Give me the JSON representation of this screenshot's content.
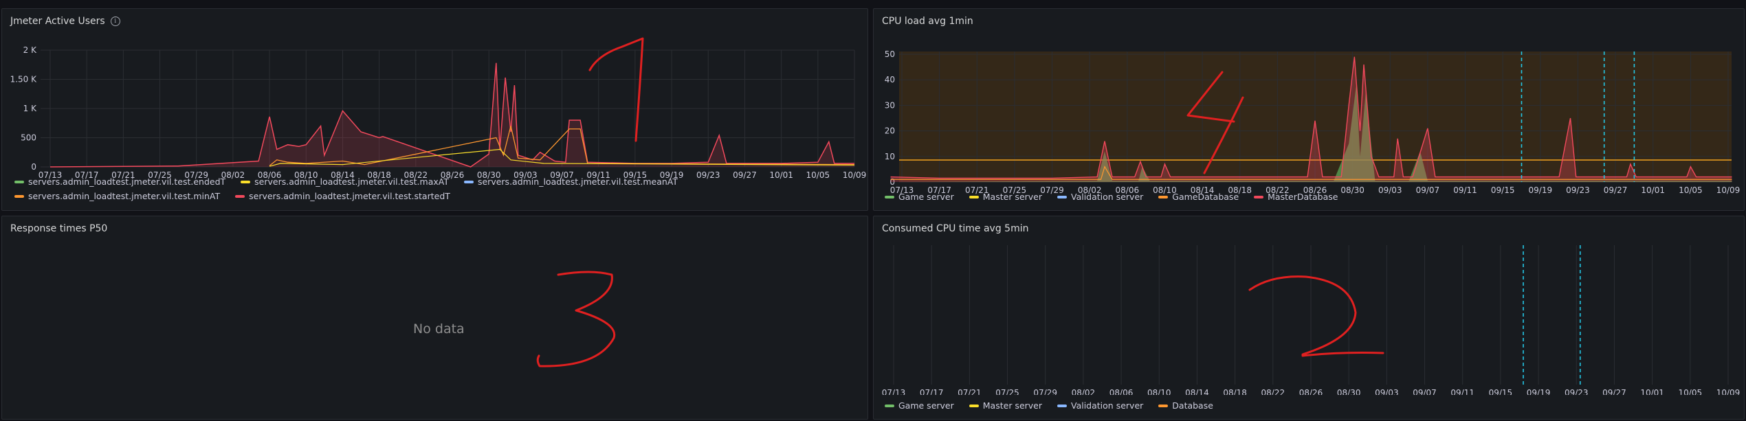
{
  "panels": {
    "jmeter": {
      "title": "Jmeter Active Users",
      "info_icon": "info-circle-icon",
      "yticks": [
        "0",
        "500",
        "1 K",
        "1.50 K",
        "2 K"
      ],
      "xticks": [
        "07/13",
        "07/17",
        "07/21",
        "07/25",
        "07/29",
        "08/02",
        "08/06",
        "08/10",
        "08/14",
        "08/18",
        "08/22",
        "08/26",
        "08/30",
        "09/03",
        "09/07",
        "09/11",
        "09/15",
        "09/19",
        "09/23",
        "09/27",
        "10/01",
        "10/05",
        "10/09"
      ],
      "legend": [
        {
          "label": "servers.admin_loadtest.jmeter.vil.test.endedT",
          "color": "#73bf69"
        },
        {
          "label": "servers.admin_loadtest.jmeter.vil.test.maxAT",
          "color": "#fade2a"
        },
        {
          "label": "servers.admin_loadtest.jmeter.vil.test.meanAT",
          "color": "#8ab8ff"
        },
        {
          "label": "servers.admin_loadtest.jmeter.vil.test.minAT",
          "color": "#ff9830"
        },
        {
          "label": "servers.admin_loadtest.jmeter.vil.test.startedT",
          "color": "#f2495c"
        }
      ]
    },
    "cpu_load": {
      "title": "CPU load avg 1min",
      "yticks": [
        "0",
        "10",
        "20",
        "30",
        "40",
        "50"
      ],
      "xticks": [
        "07/13",
        "07/17",
        "07/21",
        "07/25",
        "07/29",
        "08/02",
        "08/06",
        "08/10",
        "08/14",
        "08/18",
        "08/22",
        "08/26",
        "08/30",
        "09/03",
        "09/07",
        "09/11",
        "09/15",
        "09/19",
        "09/23",
        "09/27",
        "10/01",
        "10/05",
        "10/09"
      ],
      "legend": [
        {
          "label": "Game server",
          "color": "#73bf69"
        },
        {
          "label": "Master server",
          "color": "#fade2a"
        },
        {
          "label": "Validation server",
          "color": "#8ab8ff"
        },
        {
          "label": "GameDatabase",
          "color": "#ff9830"
        },
        {
          "label": "MasterDatabase",
          "color": "#f2495c"
        }
      ]
    },
    "response": {
      "title": "Response times P50",
      "no_data": "No data"
    },
    "consumed": {
      "title": "Consumed CPU time avg 5min",
      "xticks": [
        "07/13",
        "07/17",
        "07/21",
        "07/25",
        "07/29",
        "08/02",
        "08/06",
        "08/10",
        "08/14",
        "08/18",
        "08/22",
        "08/26",
        "08/30",
        "09/03",
        "09/07",
        "09/11",
        "09/15",
        "09/19",
        "09/23",
        "09/27",
        "10/01",
        "10/05",
        "10/09"
      ],
      "legend": [
        {
          "label": "Game server",
          "color": "#73bf69"
        },
        {
          "label": "Master server",
          "color": "#fade2a"
        },
        {
          "label": "Validation server",
          "color": "#8ab8ff"
        },
        {
          "label": "Database",
          "color": "#ff9830"
        }
      ]
    }
  },
  "annotations": {
    "numbers": [
      "1",
      "2",
      "3",
      "4"
    ],
    "color": "#e02020"
  }
}
